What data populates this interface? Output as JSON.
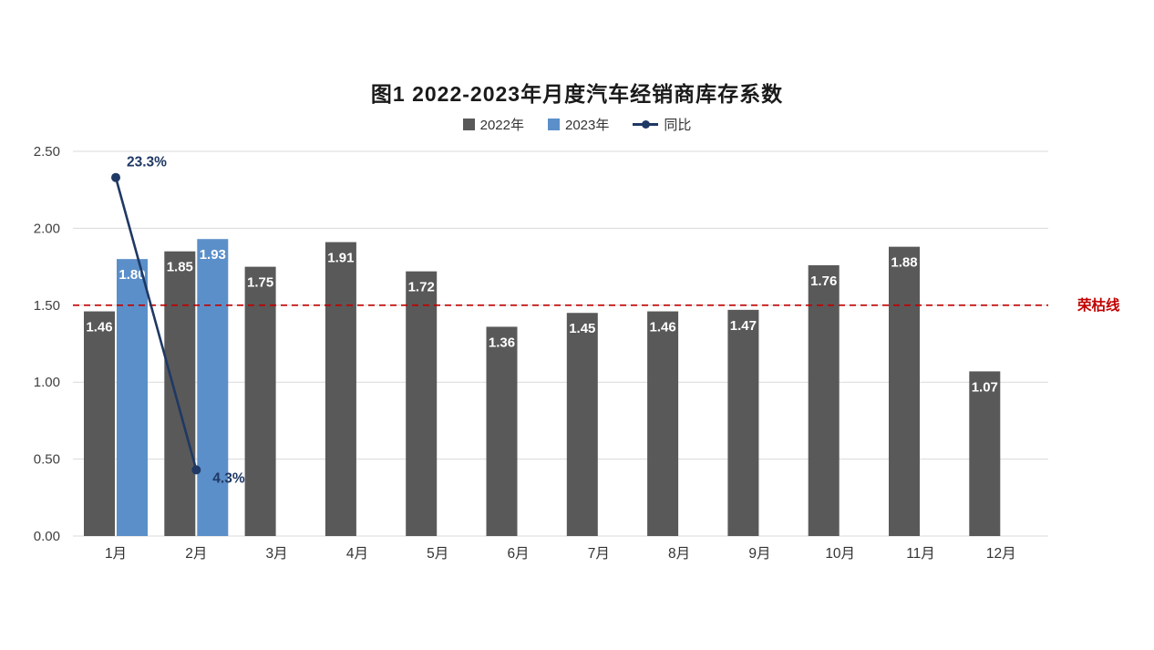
{
  "chart_data": {
    "type": "bar",
    "title": "图1  2022-2023年月度汽车经销商库存系数",
    "categories": [
      "1月",
      "2月",
      "3月",
      "4月",
      "5月",
      "6月",
      "7月",
      "8月",
      "9月",
      "10月",
      "11月",
      "12月"
    ],
    "series": [
      {
        "name": "2022年",
        "type": "bar",
        "color": "#595959",
        "values": [
          1.46,
          1.85,
          1.75,
          1.91,
          1.72,
          1.36,
          1.45,
          1.46,
          1.47,
          1.76,
          1.88,
          1.07
        ],
        "labels": [
          "1.46",
          "1.85",
          "1.75",
          "1.91",
          "1.72",
          "1.36",
          "1.45",
          "1.46",
          "1.47",
          "1.76",
          "1.88",
          "1.07"
        ]
      },
      {
        "name": "2023年",
        "type": "bar",
        "color": "#5B8FC9",
        "values": [
          1.8,
          1.93,
          null,
          null,
          null,
          null,
          null,
          null,
          null,
          null,
          null,
          null
        ],
        "labels": [
          "1.80",
          "1.93"
        ]
      },
      {
        "name": "同比",
        "type": "line",
        "color": "#1F3864",
        "values_pct": [
          23.3,
          4.3
        ],
        "labels": [
          "23.3%",
          "4.3%"
        ]
      }
    ],
    "ylim": [
      0,
      2.5
    ],
    "yticks": [
      "0.00",
      "0.50",
      "1.00",
      "1.50",
      "2.00",
      "2.50"
    ],
    "reference_line": {
      "value": 1.5,
      "label": "荣枯线",
      "color": "#C00000"
    },
    "grid": true,
    "legend_position": "top",
    "secondary_axis_note": "line plotted as pct/10 on primary axis"
  }
}
